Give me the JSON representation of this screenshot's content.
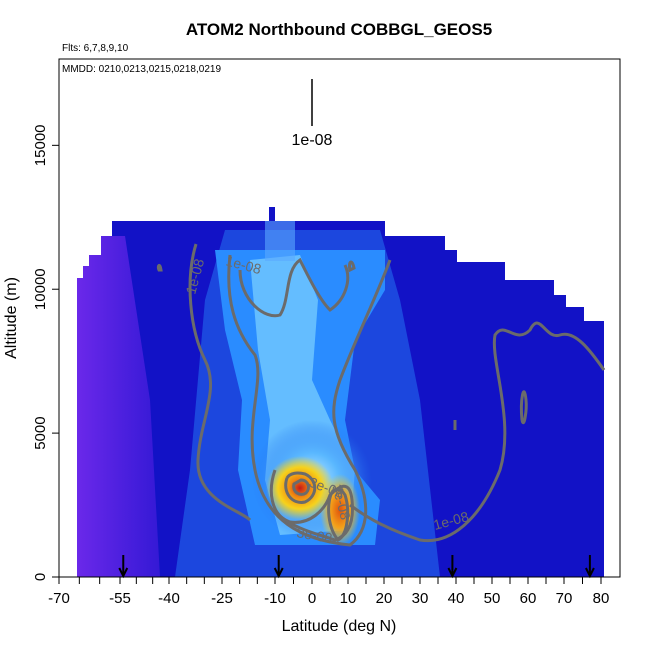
{
  "chart_data": {
    "type": "heatmap",
    "title": "ATOM2 Northbound COBBGL_GEOS5",
    "flights_note": "Flts: 6,7,8,9,10",
    "dates_note": "MMDD: 0210,0213,0215,0218,0219",
    "xlabel": "Latitude (deg N)",
    "ylabel": "Altitude (m)",
    "xlim": [
      -70,
      82
    ],
    "ylim": [
      0,
      18000
    ],
    "x_tick_labels": [
      "-70",
      "-55",
      "-40",
      "-25",
      "-10",
      "0",
      "10",
      "20",
      "30",
      "40",
      "50",
      "60",
      "70",
      "80"
    ],
    "x_minor_ticks": [
      -65,
      -60,
      -50,
      -45,
      -35,
      -30,
      -20,
      -15,
      -5,
      5,
      15,
      25,
      35,
      45,
      55,
      65,
      75
    ],
    "y_ticks": [
      0,
      5000,
      10000,
      15000
    ],
    "y_tick_labels": [
      "0",
      "5000",
      "10000",
      "15000"
    ],
    "key_label": "1e-08",
    "contour_labels": [
      "1e-08",
      "1e-08",
      "1e-08",
      "3e-08",
      "3e-08",
      "3e-08"
    ],
    "flight_markers_lat": [
      -54,
      -9,
      39,
      77
    ],
    "colors": {
      "background_field": "#1010c8",
      "low_south": "#7a2cf0",
      "mid": "#2a8cff",
      "high": "#9fe0ff",
      "peak_yellow": "#f6d21c",
      "peak_orange": "#f08a10",
      "peak_red": "#c81818",
      "contour": "#6b6b6b"
    }
  }
}
